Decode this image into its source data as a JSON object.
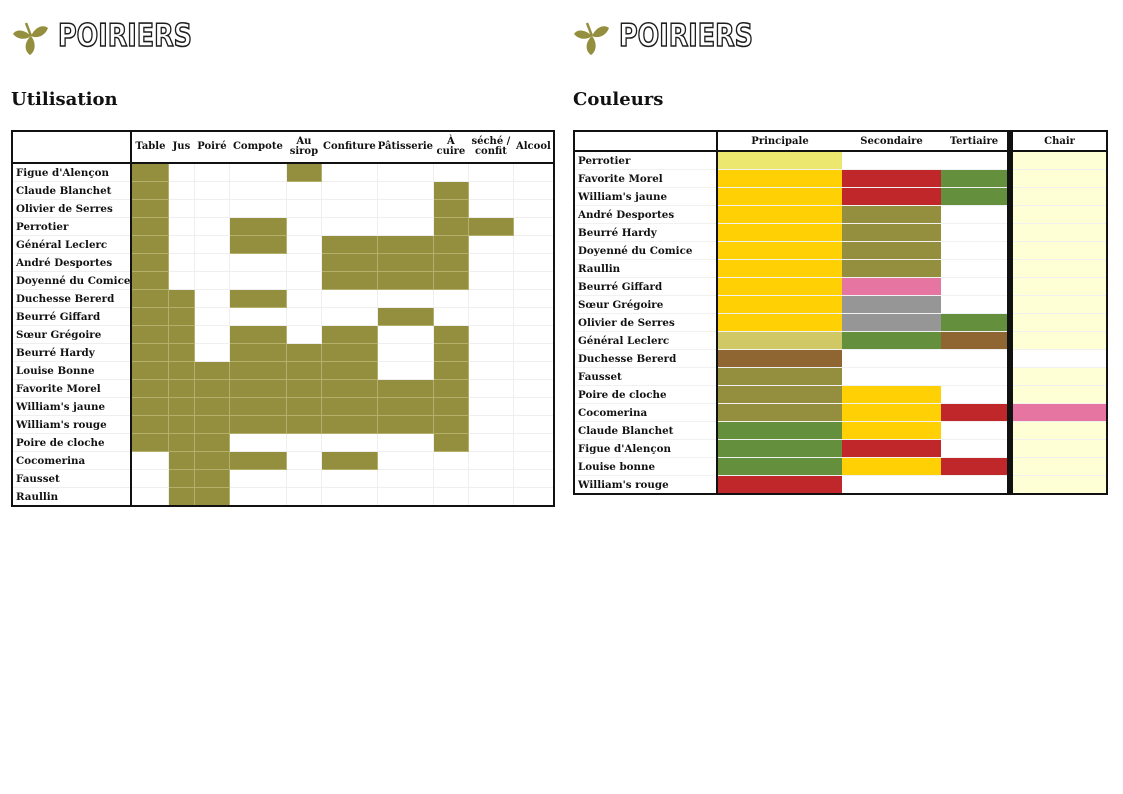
{
  "brand": "POIRIERS",
  "logo_icon": "leaf-icon",
  "colors": {
    "olive": "#948f3f",
    "yellow": "#ffd105",
    "pale_yellow": "#ece86f",
    "red": "#c0272a",
    "green": "#64903e",
    "pink": "#e775a2",
    "grey": "#969696",
    "light_olive": "#cfc865",
    "brown": "#8f6532",
    "cream": "#ffffd6",
    "white": "#ffffff"
  },
  "utilisation": {
    "title": "Utilisation",
    "columns": [
      "Table",
      "Jus",
      "Poiré",
      "Compote",
      "Au\nsirop",
      "Confiture",
      "Pâtisserie",
      "À\ncuire",
      "séché /\nconfit",
      "Alcool"
    ],
    "rows": [
      {
        "name": "Figue d'Alençon",
        "uses": [
          1,
          0,
          0,
          0,
          1,
          0,
          0,
          0,
          0,
          0
        ]
      },
      {
        "name": "Claude Blanchet",
        "uses": [
          1,
          0,
          0,
          0,
          0,
          0,
          0,
          1,
          0,
          0
        ]
      },
      {
        "name": "Olivier de Serres",
        "uses": [
          1,
          0,
          0,
          0,
          0,
          0,
          0,
          1,
          0,
          0
        ]
      },
      {
        "name": "Perrotier",
        "uses": [
          1,
          0,
          0,
          1,
          0,
          0,
          0,
          1,
          1,
          0
        ]
      },
      {
        "name": "Général Leclerc",
        "uses": [
          1,
          0,
          0,
          1,
          0,
          1,
          1,
          1,
          0,
          0
        ]
      },
      {
        "name": "André Desportes",
        "uses": [
          1,
          0,
          0,
          0,
          0,
          1,
          1,
          1,
          0,
          0
        ]
      },
      {
        "name": "Doyenné du Comice",
        "uses": [
          1,
          0,
          0,
          0,
          0,
          1,
          1,
          1,
          0,
          0
        ]
      },
      {
        "name": "Duchesse Bererd",
        "uses": [
          1,
          1,
          0,
          1,
          0,
          0,
          0,
          0,
          0,
          0
        ]
      },
      {
        "name": "Beurré Giffard",
        "uses": [
          1,
          1,
          0,
          0,
          0,
          0,
          1,
          0,
          0,
          0
        ]
      },
      {
        "name": "Sœur Grégoire",
        "uses": [
          1,
          1,
          0,
          1,
          0,
          1,
          0,
          1,
          0,
          0
        ]
      },
      {
        "name": "Beurré Hardy",
        "uses": [
          1,
          1,
          0,
          1,
          1,
          1,
          0,
          1,
          0,
          0
        ]
      },
      {
        "name": "Louise Bonne",
        "uses": [
          1,
          1,
          1,
          1,
          1,
          1,
          0,
          1,
          0,
          0
        ]
      },
      {
        "name": "Favorite Morel",
        "uses": [
          1,
          1,
          1,
          1,
          1,
          1,
          1,
          1,
          0,
          0
        ]
      },
      {
        "name": "William's jaune",
        "uses": [
          1,
          1,
          1,
          1,
          1,
          1,
          1,
          1,
          0,
          0
        ]
      },
      {
        "name": "William's rouge",
        "uses": [
          1,
          1,
          1,
          1,
          1,
          1,
          1,
          1,
          0,
          0
        ]
      },
      {
        "name": "Poire de cloche",
        "uses": [
          1,
          1,
          1,
          0,
          0,
          0,
          0,
          1,
          0,
          0
        ]
      },
      {
        "name": "Cocomerina",
        "uses": [
          0,
          1,
          1,
          1,
          0,
          1,
          0,
          0,
          0,
          0
        ]
      },
      {
        "name": "Fausset",
        "uses": [
          0,
          1,
          1,
          0,
          0,
          0,
          0,
          0,
          0,
          0
        ]
      },
      {
        "name": "Raullin",
        "uses": [
          0,
          1,
          1,
          0,
          0,
          0,
          0,
          0,
          0,
          0
        ]
      }
    ]
  },
  "couleurs": {
    "title": "Couleurs",
    "columns": [
      "Principale",
      "Secondaire",
      "Tertiaire",
      "Chair"
    ],
    "rows": [
      {
        "name": "Perrotier",
        "colors": [
          "pale_yellow",
          "white",
          "white",
          "cream"
        ]
      },
      {
        "name": "Favorite Morel",
        "colors": [
          "yellow",
          "red",
          "green",
          "cream"
        ]
      },
      {
        "name": "William's jaune",
        "colors": [
          "yellow",
          "red",
          "green",
          "cream"
        ]
      },
      {
        "name": "André Desportes",
        "colors": [
          "yellow",
          "olive",
          "white",
          "cream"
        ]
      },
      {
        "name": "Beurré Hardy",
        "colors": [
          "yellow",
          "olive",
          "white",
          "cream"
        ]
      },
      {
        "name": "Doyenné du Comice",
        "colors": [
          "yellow",
          "olive",
          "white",
          "cream"
        ]
      },
      {
        "name": "Raullin",
        "colors": [
          "yellow",
          "olive",
          "white",
          "cream"
        ]
      },
      {
        "name": "Beurré Giffard",
        "colors": [
          "yellow",
          "pink",
          "white",
          "cream"
        ]
      },
      {
        "name": "Sœur Grégoire",
        "colors": [
          "yellow",
          "grey",
          "white",
          "cream"
        ]
      },
      {
        "name": "Olivier de Serres",
        "colors": [
          "yellow",
          "grey",
          "green",
          "cream"
        ]
      },
      {
        "name": "Général Leclerc",
        "colors": [
          "light_olive",
          "green",
          "brown",
          "cream"
        ]
      },
      {
        "name": "Duchesse Bererd",
        "colors": [
          "brown",
          "white",
          "white",
          "white"
        ]
      },
      {
        "name": "Fausset",
        "colors": [
          "olive",
          "white",
          "white",
          "cream"
        ]
      },
      {
        "name": "Poire de cloche",
        "colors": [
          "olive",
          "yellow",
          "white",
          "cream"
        ]
      },
      {
        "name": "Cocomerina",
        "colors": [
          "olive",
          "yellow",
          "red",
          "pink"
        ]
      },
      {
        "name": "Claude Blanchet",
        "colors": [
          "green",
          "yellow",
          "white",
          "cream"
        ]
      },
      {
        "name": "Figue d'Alençon",
        "colors": [
          "green",
          "red",
          "white",
          "cream"
        ]
      },
      {
        "name": "Louise bonne",
        "colors": [
          "green",
          "yellow",
          "red",
          "cream"
        ]
      },
      {
        "name": "William's rouge",
        "colors": [
          "red",
          "white",
          "white",
          "cream"
        ]
      }
    ]
  }
}
